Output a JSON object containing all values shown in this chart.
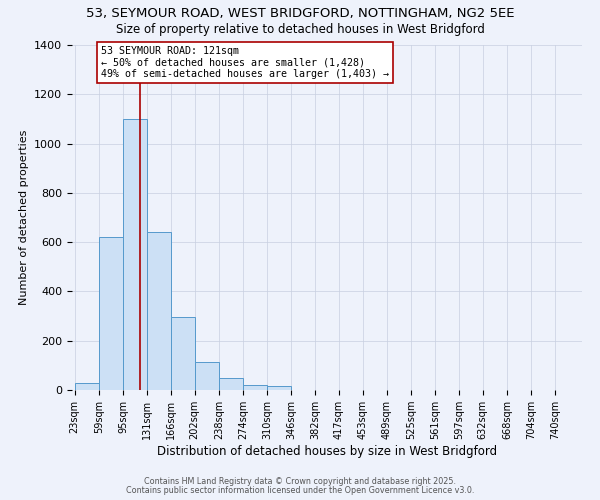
{
  "title": "53, SEYMOUR ROAD, WEST BRIDGFORD, NOTTINGHAM, NG2 5EE",
  "subtitle": "Size of property relative to detached houses in West Bridgford",
  "bar_labels": [
    "23sqm",
    "59sqm",
    "95sqm",
    "131sqm",
    "166sqm",
    "202sqm",
    "238sqm",
    "274sqm",
    "310sqm",
    "346sqm",
    "382sqm",
    "417sqm",
    "453sqm",
    "489sqm",
    "525sqm",
    "561sqm",
    "597sqm",
    "632sqm",
    "668sqm",
    "704sqm",
    "740sqm"
  ],
  "bar_values": [
    30,
    620,
    1100,
    640,
    295,
    115,
    50,
    20,
    15,
    0,
    0,
    0,
    0,
    0,
    0,
    0,
    0,
    0,
    0,
    0,
    0
  ],
  "bar_color": "#cce0f5",
  "bar_edge_color": "#5599cc",
  "xlabel": "Distribution of detached houses by size in West Bridgford",
  "ylabel": "Number of detached properties",
  "ylim": [
    0,
    1400
  ],
  "yticks": [
    0,
    200,
    400,
    600,
    800,
    1000,
    1200,
    1400
  ],
  "property_line_x": 121,
  "property_line_label": "53 SEYMOUR ROAD: 121sqm",
  "annotation_line1": "← 50% of detached houses are smaller (1,428)",
  "annotation_line2": "49% of semi-detached houses are larger (1,403) →",
  "vline_color": "#aa0000",
  "background_color": "#eef2fb",
  "footer_line1": "Contains HM Land Registry data © Crown copyright and database right 2025.",
  "footer_line2": "Contains public sector information licensed under the Open Government Licence v3.0.",
  "title_fontsize": 9.5,
  "subtitle_fontsize": 8.5,
  "bins_left_edges": [
    23,
    59,
    95,
    131,
    166,
    202,
    238,
    274,
    310,
    346,
    382,
    417,
    453,
    489,
    525,
    561,
    597,
    632,
    668,
    704,
    740
  ],
  "bin_width": 36
}
